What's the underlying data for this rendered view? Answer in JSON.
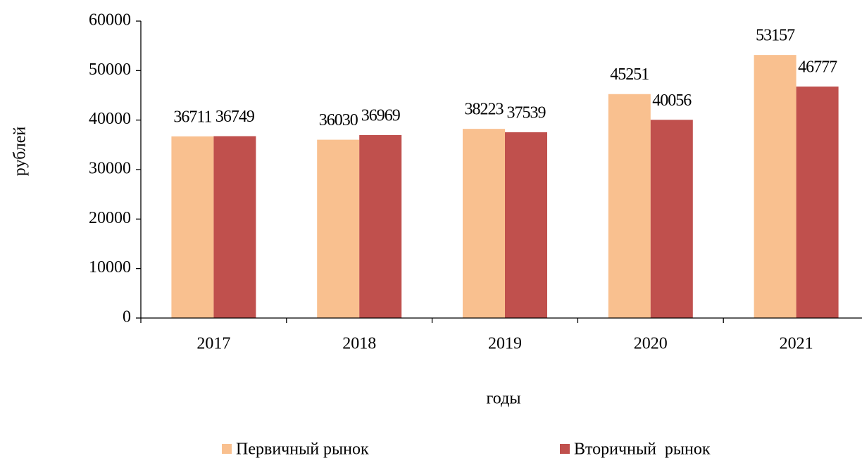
{
  "chart_data": {
    "type": "bar",
    "categories": [
      "2017",
      "2018",
      "2019",
      "2020",
      "2021"
    ],
    "series": [
      {
        "name": "Первичный рынок",
        "color": "#f9c08f",
        "values": [
          36711,
          36030,
          38223,
          45251,
          53157
        ]
      },
      {
        "name": "Вторичный  рынок",
        "color": "#c0504d",
        "values": [
          36749,
          36969,
          37539,
          40056,
          46777
        ]
      }
    ],
    "x_label": "годы",
    "y_label": "рублей",
    "ylim": [
      0,
      60000
    ],
    "yticks": [
      0,
      10000,
      20000,
      30000,
      40000,
      50000,
      60000
    ],
    "grid": false,
    "legend": "bottom"
  }
}
